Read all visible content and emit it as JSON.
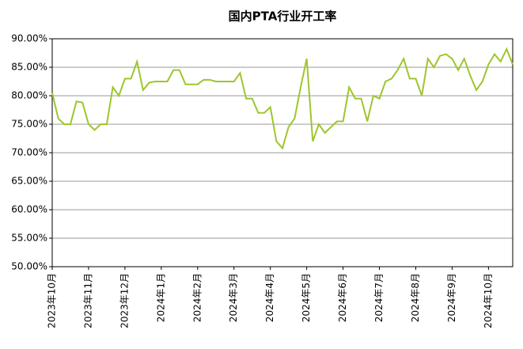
{
  "chart_data": {
    "type": "line",
    "title": "国内PTA行业开工率",
    "categories": [
      "2023年10月",
      null,
      null,
      null,
      null,
      null,
      "2023年11月",
      null,
      null,
      null,
      null,
      null,
      "2023年12月",
      null,
      null,
      null,
      null,
      null,
      "2024年1月",
      null,
      null,
      null,
      null,
      null,
      "2024年2月",
      null,
      null,
      null,
      null,
      null,
      "2024年3月",
      null,
      null,
      null,
      null,
      null,
      "2024年4月",
      null,
      null,
      null,
      null,
      null,
      "2024年5月",
      null,
      null,
      null,
      null,
      null,
      "2024年6月",
      null,
      null,
      null,
      null,
      null,
      "2024年7月",
      null,
      null,
      null,
      null,
      null,
      "2024年8月",
      null,
      null,
      null,
      null,
      null,
      "2024年9月",
      null,
      null,
      null,
      null,
      null,
      "2024年10月",
      null,
      null,
      null,
      null
    ],
    "series": [
      {
        "name": "国内PTA行业开工率",
        "color": "#9dc62d",
        "values": [
          80.5,
          76,
          75,
          75,
          79,
          78.8,
          75,
          74,
          75,
          75,
          81.5,
          80,
          83,
          83,
          86,
          81,
          82.3,
          82.5,
          82.5,
          82.5,
          84.5,
          84.5,
          82,
          82,
          82,
          82.8,
          82.8,
          82.5,
          82.5,
          82.5,
          82.5,
          84,
          79.5,
          79.5,
          77,
          77,
          78,
          72,
          70.8,
          74.5,
          76,
          81.5,
          86.5,
          72,
          75,
          73.5,
          74.5,
          75.5,
          75.5,
          81.5,
          79.5,
          79.5,
          75.5,
          80,
          79.5,
          82.5,
          83,
          84.5,
          86.5,
          83,
          83,
          80,
          86.5,
          85,
          87,
          87.3,
          86.5,
          84.5,
          86.5,
          83.5,
          81,
          82.5,
          85.5,
          87.3,
          86,
          88.2,
          85.5
        ]
      }
    ],
    "ylim": [
      50,
      90
    ],
    "yticks": [
      {
        "value": 50,
        "label": "50.00%"
      },
      {
        "value": 55,
        "label": "55.00%"
      },
      {
        "value": 60,
        "label": "60.00%"
      },
      {
        "value": 65,
        "label": "65.00%"
      },
      {
        "value": 70,
        "label": "70.00%"
      },
      {
        "value": 75,
        "label": "75.00%"
      },
      {
        "value": 80,
        "label": "80.00%"
      },
      {
        "value": 85,
        "label": "85.00%"
      },
      {
        "value": 90,
        "label": "90.00%"
      }
    ],
    "grid": true
  }
}
